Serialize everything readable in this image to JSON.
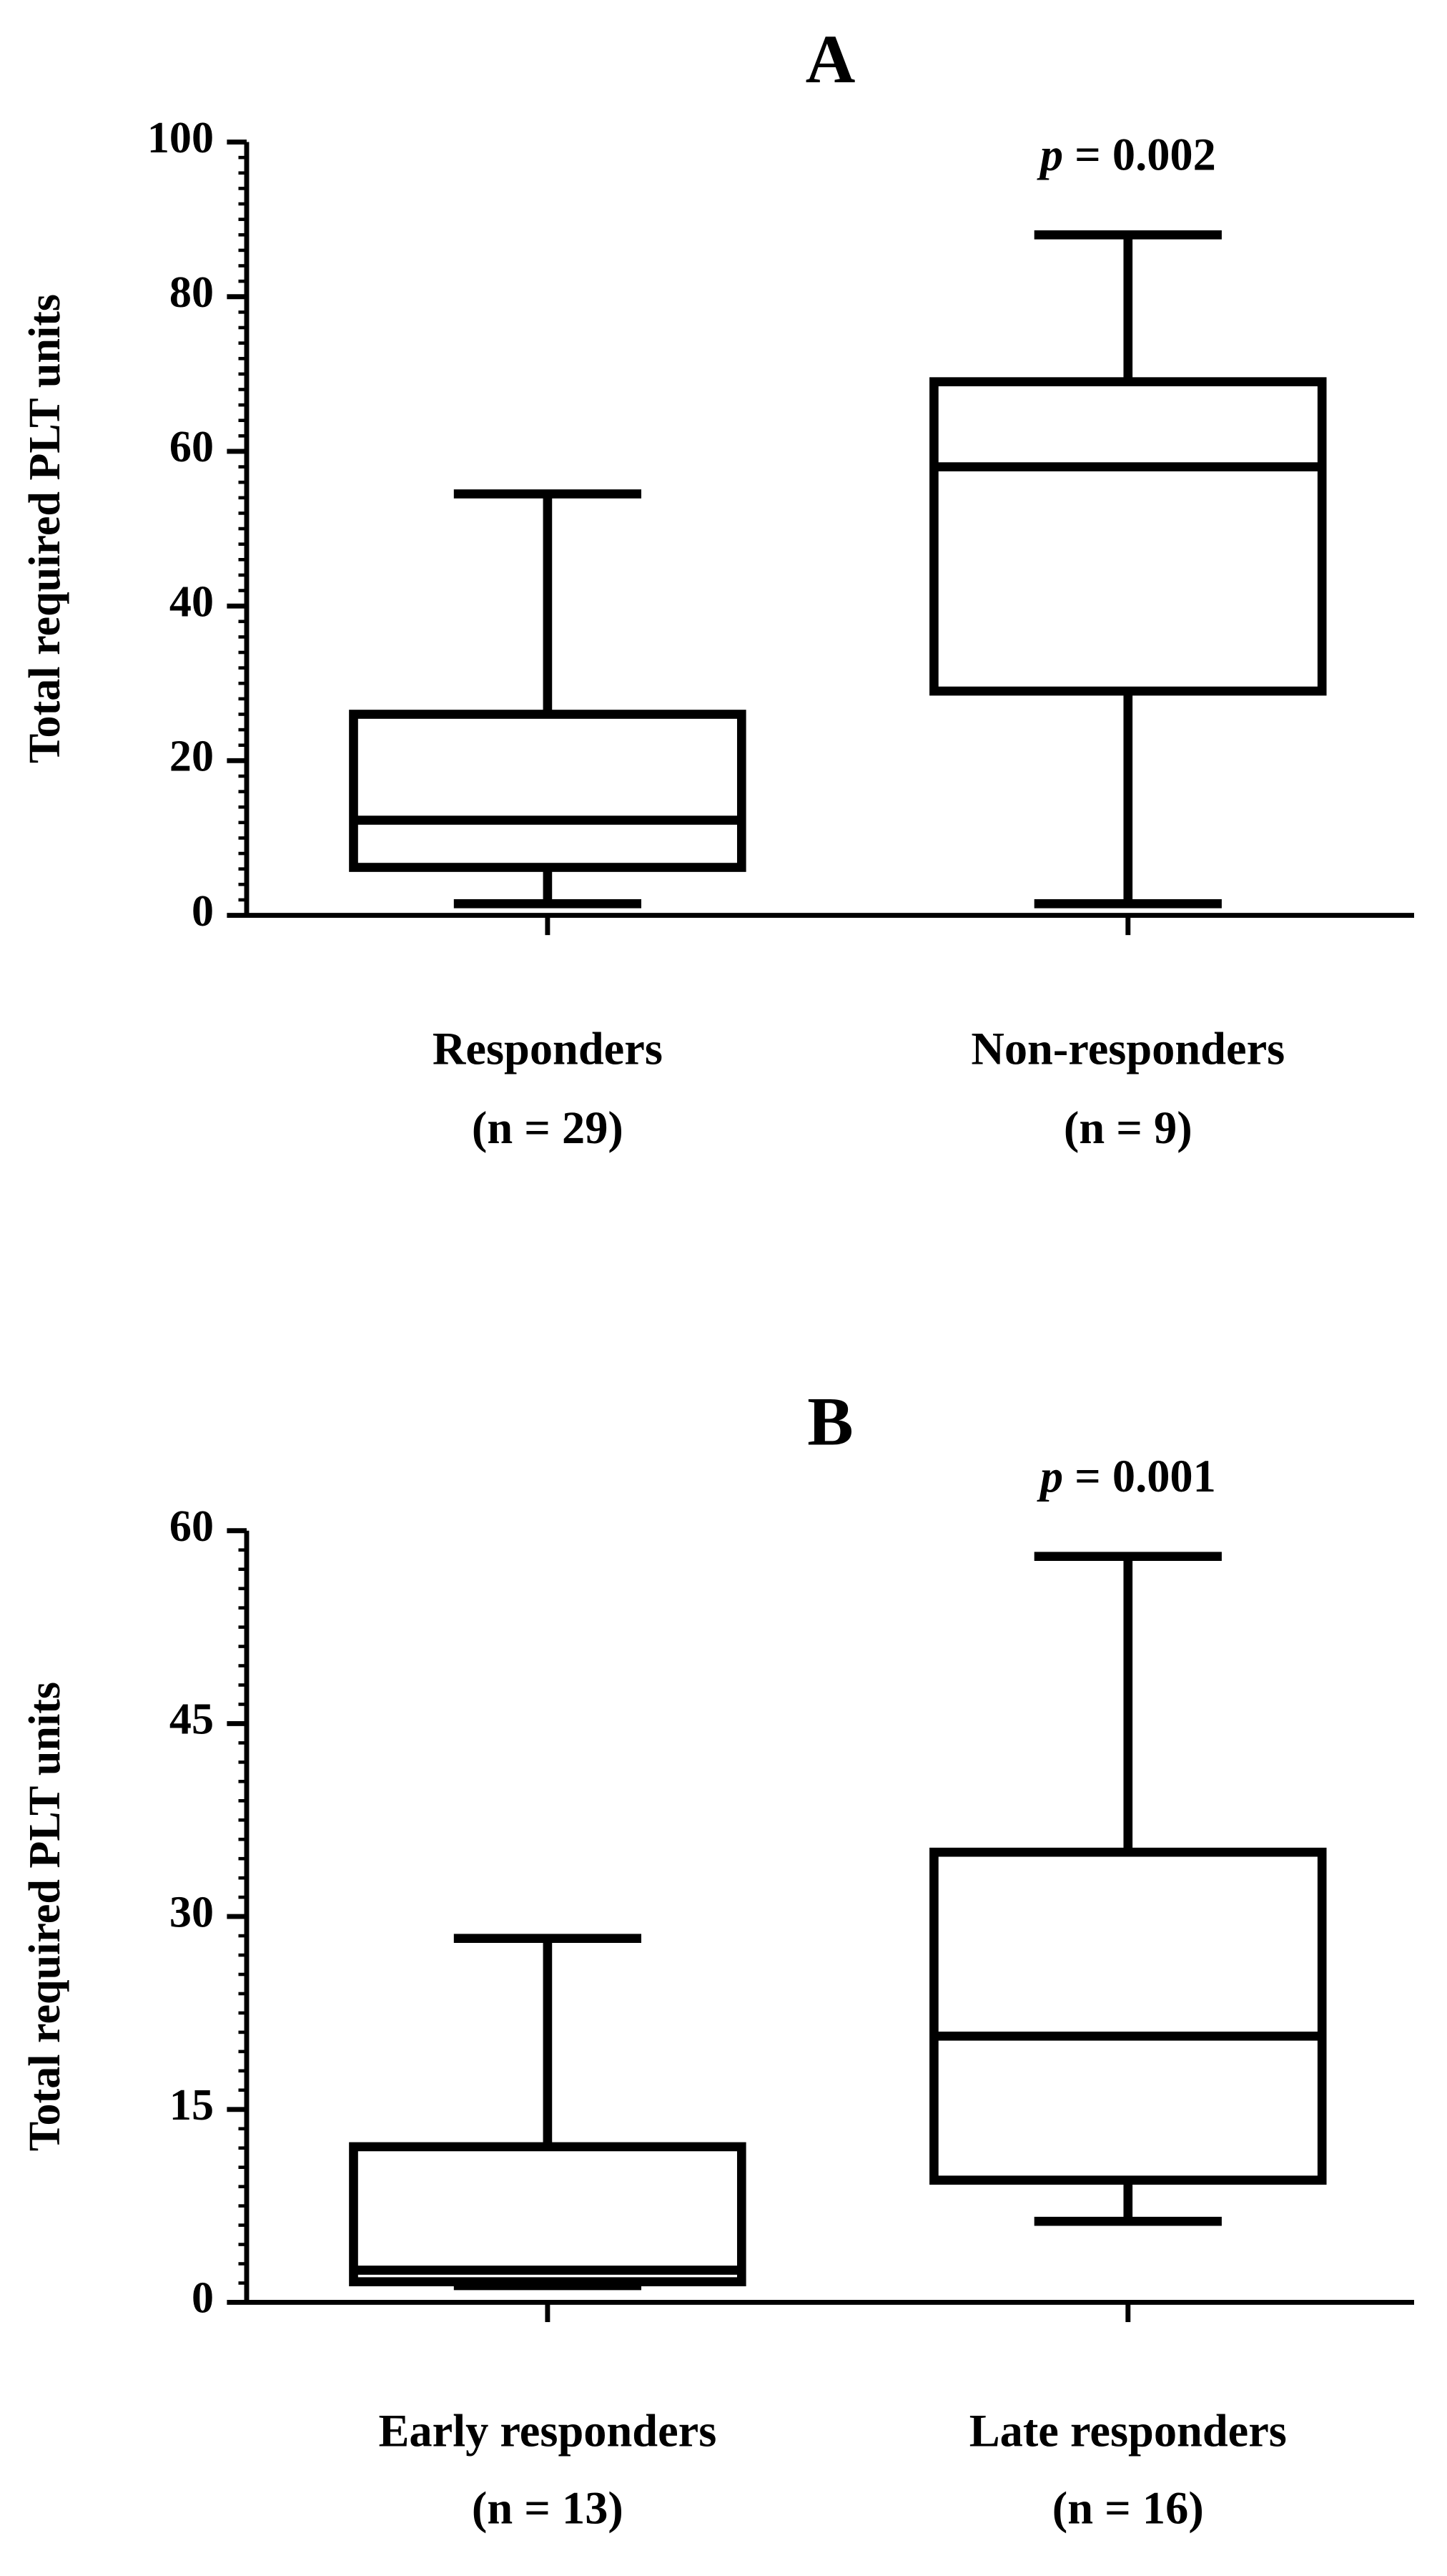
{
  "chart_data": [
    {
      "type": "box",
      "title": "A",
      "ylabel": "Total required PLT units",
      "categories": [
        "Responders",
        "Non-responders"
      ],
      "category_notes": [
        "(n = 29)",
        "(n = 9)"
      ],
      "boxes": [
        {
          "min": 1.5,
          "q1": 6.2,
          "median": 12.3,
          "q3": 26,
          "max": 54.5
        },
        {
          "min": 1.5,
          "q1": 29,
          "median": 58,
          "q3": 69,
          "max": 88
        }
      ],
      "annotation": "p = 0.002",
      "annotation_category": 1,
      "ylim": [
        0,
        100
      ],
      "yticks": [
        0,
        20,
        40,
        60,
        80,
        100
      ],
      "minor_tick_step": 2,
      "color": "#000000"
    },
    {
      "type": "box",
      "title": "B",
      "ylabel": "Total required PLT units",
      "categories": [
        "Early responders",
        "Late responders"
      ],
      "category_notes": [
        "(n = 13)",
        "(n = 16)"
      ],
      "boxes": [
        {
          "min": 1.3,
          "q1": 1.6,
          "median": 2.5,
          "q3": 12.1,
          "max": 28.3
        },
        {
          "min": 6.3,
          "q1": 9.5,
          "median": 20.7,
          "q3": 35,
          "max": 58
        }
      ],
      "annotation": "p = 0.001",
      "annotation_category": 1,
      "ylim": [
        0,
        60
      ],
      "yticks": [
        0,
        15,
        30,
        45,
        60
      ],
      "minor_tick_step": 1.5,
      "color": "#000000"
    }
  ]
}
